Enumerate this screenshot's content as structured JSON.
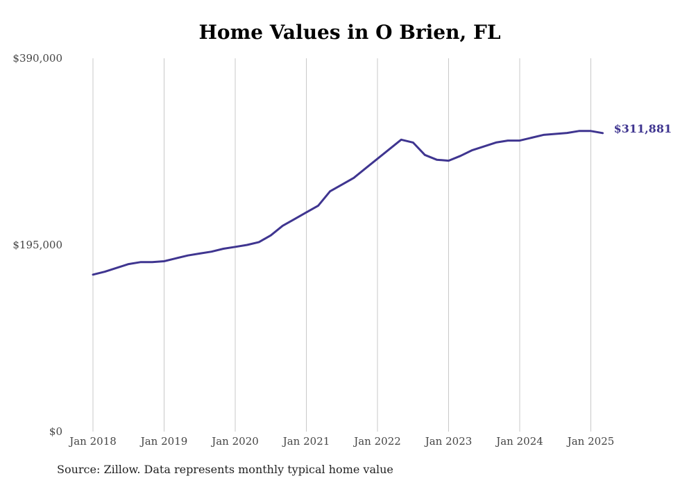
{
  "chart_data": {
    "type": "line",
    "title": "Home Values in O Brien, FL",
    "xlabel": "",
    "ylabel": "",
    "ylim": [
      0,
      390000
    ],
    "y_ticks": [
      "$390,000",
      "$195,000",
      "$0"
    ],
    "y_tick_values": [
      390000,
      195000,
      0
    ],
    "x_ticks": [
      "Jan 2018",
      "Jan 2019",
      "Jan 2020",
      "Jan 2021",
      "Jan 2022",
      "Jan 2023",
      "Jan 2024",
      "Jan 2025"
    ],
    "x_tick_dates": [
      "2018-01",
      "2019-01",
      "2020-01",
      "2021-01",
      "2022-01",
      "2023-01",
      "2024-01",
      "2025-01"
    ],
    "grid": "vertical",
    "end_label": "$311,881",
    "series": [
      {
        "color": "#3f3590",
        "x": [
          "2018-01",
          "2018-03",
          "2018-05",
          "2018-07",
          "2018-09",
          "2018-11",
          "2019-01",
          "2019-03",
          "2019-05",
          "2019-07",
          "2019-09",
          "2019-11",
          "2020-01",
          "2020-03",
          "2020-05",
          "2020-07",
          "2020-09",
          "2020-11",
          "2021-01",
          "2021-03",
          "2021-05",
          "2021-07",
          "2021-09",
          "2021-11",
          "2022-01",
          "2022-03",
          "2022-05",
          "2022-07",
          "2022-09",
          "2022-11",
          "2023-01",
          "2023-03",
          "2023-05",
          "2023-07",
          "2023-09",
          "2023-11",
          "2024-01",
          "2024-03",
          "2024-05",
          "2024-07",
          "2024-09",
          "2024-11",
          "2025-01",
          "2025-03"
        ],
        "values": [
          164000,
          167000,
          171000,
          175000,
          177000,
          177000,
          178000,
          181000,
          184000,
          186000,
          188000,
          191000,
          193000,
          195000,
          198000,
          205000,
          215000,
          222000,
          229000,
          236000,
          251000,
          258000,
          265000,
          275000,
          285000,
          295000,
          305000,
          302000,
          289000,
          284000,
          283000,
          288000,
          294000,
          298000,
          302000,
          304000,
          304000,
          307000,
          310000,
          311000,
          312000,
          314000,
          314000,
          311881
        ]
      }
    ]
  },
  "source": "Source: Zillow. Data represents monthly typical home value"
}
